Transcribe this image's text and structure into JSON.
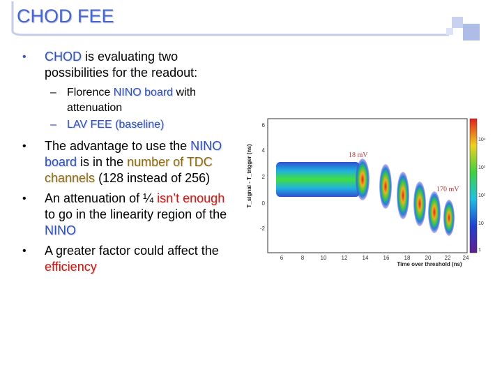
{
  "title": "CHOD FEE",
  "bullets": {
    "b1_pre": "",
    "b1_hl": "CHOD",
    "b1_post": " is evaluating two possibilities for the readout:",
    "sub1_pre": "Florence ",
    "sub1_hl": "NINO board",
    "sub1_post": " with attenuation",
    "sub2_hl": "LAV FEE (baseline)",
    "b2_pre": "The advantage to use the ",
    "b2_hl1": "NINO board",
    "b2_mid": " is in the ",
    "b2_hl2": "number of TDC channels",
    "b2_post": " (128 instead of 256)",
    "b3_pre": "An attenuation of ¼ ",
    "b3_hl": "isn’t enough",
    "b3_mid": " to go in the linearity region of the ",
    "b3_hl2": "NINO",
    "b4_pre": "A greater factor could affect the ",
    "b4_hl": "efficiency"
  },
  "plot": {
    "ylabel": "T_signal - T_trigger (ns)",
    "xlabel": "Time over threshold (ns)",
    "x_ticks": [
      "6",
      "8",
      "10",
      "12",
      "14",
      "16",
      "18",
      "20",
      "22",
      "24"
    ],
    "y_ticks": [
      "6",
      "4",
      "2",
      "0",
      "-2"
    ],
    "label_18": "18 mV",
    "label_170": "170 mV",
    "scale_ticks": [
      "10⁴",
      "10³",
      "10²",
      "10",
      "1"
    ]
  }
}
